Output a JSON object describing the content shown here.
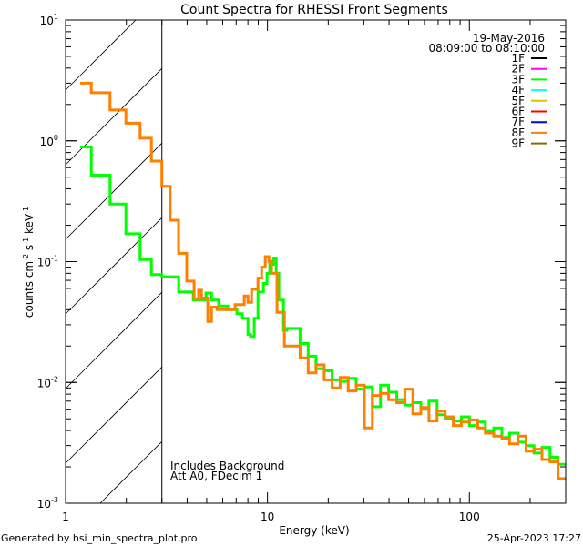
{
  "chart_data": {
    "type": "line",
    "title": "Count Spectra for RHESSI Front Segments",
    "xlabel": "Energy (keV)",
    "ylabel": "counts cm-2 s-1 keV-1",
    "ylabel_parts": [
      "counts cm",
      "-2",
      " s",
      "-1",
      " keV",
      "-1"
    ],
    "xscale": "log",
    "yscale": "log",
    "xlim": [
      1,
      300
    ],
    "ylim": [
      0.001,
      10
    ],
    "x_ticks": [
      {
        "value": 1,
        "label": "1"
      },
      {
        "value": 10,
        "label": "10"
      },
      {
        "value": 100,
        "label": "100"
      }
    ],
    "y_ticks": [
      {
        "value": 10,
        "base": "10",
        "exp": "1"
      },
      {
        "value": 1,
        "base": "10",
        "exp": "0"
      },
      {
        "value": 0.1,
        "base": "10",
        "exp": "-1"
      },
      {
        "value": 0.01,
        "base": "10",
        "exp": "-2"
      },
      {
        "value": 0.001,
        "base": "10",
        "exp": "-3"
      }
    ],
    "shaded_region_kev": [
      1,
      3
    ],
    "date": "19-May-2016",
    "time_range": "08:09:00 to 08:10:00",
    "legend_position": "top-right",
    "legend": [
      {
        "name": "1F",
        "color": "#000000"
      },
      {
        "name": "2F",
        "color": "#ff00ff"
      },
      {
        "name": "3F",
        "color": "#00ff00"
      },
      {
        "name": "4F",
        "color": "#00ffff"
      },
      {
        "name": "5F",
        "color": "#d2c800"
      },
      {
        "name": "6F",
        "color": "#ff0000"
      },
      {
        "name": "7F",
        "color": "#0000ff"
      },
      {
        "name": "8F",
        "color": "#ff8000"
      },
      {
        "name": "9F",
        "color": "#7f7000"
      }
    ],
    "annotations": [
      "Includes Background",
      "Att A0, FDecim 1"
    ],
    "series": [
      {
        "name": "3F",
        "color": "#00ff00",
        "edges": [
          1.18,
          1.34,
          1.66,
          1.99,
          2.34,
          2.66,
          3.0,
          3.63,
          4.29,
          4.96,
          5.28,
          5.73,
          6.36,
          7.06,
          7.51,
          8.0,
          8.25,
          8.6,
          8.97,
          9.55,
          9.95,
          10.26,
          10.7,
          11.04,
          11.38,
          12.0,
          12.5,
          13.2,
          14.5,
          15.9,
          17.4,
          19.1,
          20.9,
          22.9,
          25.1,
          27.5,
          30.2,
          33.1,
          36.3,
          39.8,
          43.7,
          47.9,
          52.5,
          57.5,
          63.1,
          69.2,
          75.9,
          83.2,
          91.2,
          100,
          110,
          120,
          132,
          145,
          158,
          174,
          191,
          209,
          229,
          251,
          275,
          300
        ],
        "values": [
          0.89,
          0.52,
          0.3,
          0.17,
          0.104,
          0.078,
          0.075,
          0.056,
          0.048,
          0.055,
          0.048,
          0.043,
          0.04,
          0.037,
          0.034,
          0.025,
          0.024,
          0.034,
          0.056,
          0.066,
          0.08,
          0.095,
          0.107,
          0.08,
          0.048,
          0.027,
          0.028,
          0.028,
          0.021,
          0.0165,
          0.013,
          0.0125,
          0.0105,
          0.0102,
          0.0108,
          0.0088,
          0.0092,
          0.0063,
          0.0095,
          0.0083,
          0.0072,
          0.0065,
          0.0068,
          0.006,
          0.007,
          0.0054,
          0.005,
          0.0048,
          0.0052,
          0.0044,
          0.0047,
          0.004,
          0.0042,
          0.0035,
          0.0038,
          0.0032,
          0.003,
          0.0026,
          0.0029,
          0.0024,
          0.0021
        ]
      },
      {
        "name": "8F",
        "color": "#ff8000",
        "edges": [
          1.18,
          1.34,
          1.66,
          1.99,
          2.34,
          2.66,
          3.0,
          3.3,
          3.63,
          3.98,
          4.33,
          4.56,
          4.71,
          5.06,
          5.28,
          5.62,
          6.91,
          7.67,
          8.0,
          8.34,
          8.97,
          9.35,
          9.75,
          10.16,
          10.48,
          11.15,
          12.13,
          13.2,
          14.5,
          15.9,
          17.4,
          19.1,
          20.9,
          22.9,
          25.1,
          27.5,
          30.2,
          33.1,
          36.3,
          39.8,
          43.7,
          47.9,
          52.5,
          57.5,
          63.1,
          69.2,
          75.9,
          83.2,
          91.2,
          100,
          110,
          120,
          132,
          145,
          158,
          174,
          191,
          209,
          229,
          251,
          275,
          300
        ],
        "values": [
          3.0,
          2.5,
          1.8,
          1.4,
          1.05,
          0.68,
          0.42,
          0.22,
          0.117,
          0.069,
          0.049,
          0.058,
          0.05,
          0.032,
          0.042,
          0.04,
          0.044,
          0.052,
          0.046,
          0.059,
          0.073,
          0.09,
          0.11,
          0.1,
          0.08,
          0.038,
          0.02,
          0.02,
          0.016,
          0.012,
          0.014,
          0.0105,
          0.009,
          0.011,
          0.0085,
          0.0095,
          0.0042,
          0.0078,
          0.0081,
          0.0072,
          0.0068,
          0.0088,
          0.0055,
          0.0062,
          0.0048,
          0.0058,
          0.0052,
          0.0044,
          0.0047,
          0.0049,
          0.0042,
          0.0038,
          0.0036,
          0.0034,
          0.0031,
          0.0036,
          0.0027,
          0.0028,
          0.0023,
          0.0022,
          0.0016
        ]
      }
    ]
  },
  "footer": {
    "left": "Generated by hsi_min_spectra_plot.pro",
    "right": "25-Apr-2023 17:27"
  }
}
